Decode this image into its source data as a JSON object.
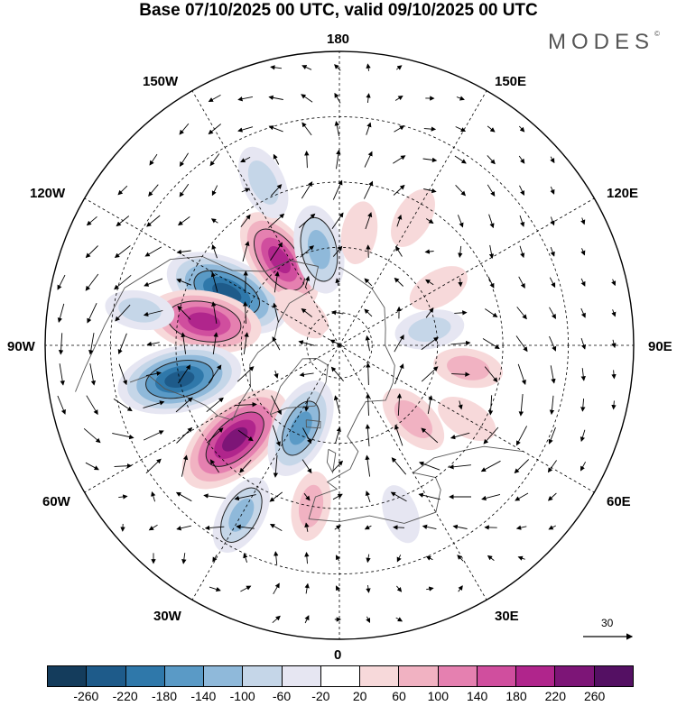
{
  "title": "Base 07/10/2025 00 UTC, valid 09/10/2025 00 UTC",
  "brand": "MODES",
  "brand_mark": "©",
  "longitude_labels": {
    "top": "180",
    "bottom": "0",
    "left": "90W",
    "right": "90E",
    "upper_left_1": "150W",
    "upper_left_2": "120W",
    "lower_left_1": "60W",
    "lower_left_2": "30W",
    "upper_right_1": "150E",
    "upper_right_2": "120E",
    "lower_right_1": "60E",
    "lower_right_2": "30E"
  },
  "wind_scale": {
    "value": "30"
  },
  "colorbar": {
    "levels": [
      "-260",
      "-220",
      "-180",
      "-140",
      "-100",
      "-60",
      "-20",
      "20",
      "60",
      "100",
      "140",
      "180",
      "220",
      "260"
    ],
    "colors": [
      "#143c5c",
      "#1e5b8a",
      "#2f78aa",
      "#5a9ac6",
      "#8fb9da",
      "#c5d6e8",
      "#e6e6f2",
      "#ffffff",
      "#f7d9da",
      "#f1b2c2",
      "#e580b0",
      "#d04e9e",
      "#b0258c",
      "#7d1577",
      "#541063"
    ]
  },
  "anomalies": [
    {
      "lon": -115,
      "lat": 52,
      "value": -240
    },
    {
      "lon": -100,
      "lat": 48,
      "value": 200
    },
    {
      "lon": -78,
      "lat": 40,
      "value": -230
    },
    {
      "lon": -48,
      "lat": 47,
      "value": 240
    },
    {
      "lon": -25,
      "lat": 62,
      "value": -160
    },
    {
      "lon": -145,
      "lat": 58,
      "value": 180
    },
    {
      "lon": -168,
      "lat": 60,
      "value": -120
    },
    {
      "lon": -155,
      "lat": 35,
      "value": -80
    },
    {
      "lon": -100,
      "lat": 28,
      "value": -60
    },
    {
      "lon": 45,
      "lat": 58,
      "value": 80
    },
    {
      "lon": 80,
      "lat": 50,
      "value": 60
    },
    {
      "lon": 100,
      "lat": 62,
      "value": -60
    },
    {
      "lon": 60,
      "lat": 45,
      "value": 40
    },
    {
      "lon": 120,
      "lat": 55,
      "value": 40
    },
    {
      "lon": 150,
      "lat": 45,
      "value": 40
    },
    {
      "lon": -30,
      "lat": 30,
      "value": -100
    },
    {
      "lon": -10,
      "lat": 40,
      "value": 60
    },
    {
      "lon": 20,
      "lat": 35,
      "value": -30
    },
    {
      "lon": 170,
      "lat": 55,
      "value": 40
    },
    {
      "lon": -130,
      "lat": 75,
      "value": 40
    }
  ]
}
